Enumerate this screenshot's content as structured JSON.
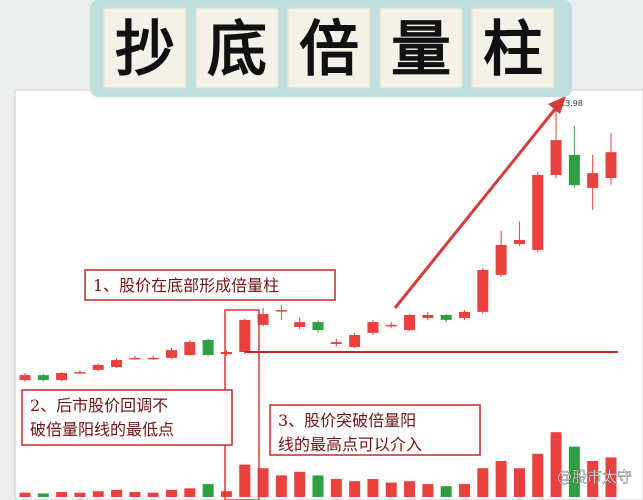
{
  "chart_data": {
    "type": "candlestick",
    "title": [
      "抄",
      "底",
      "倍",
      "量",
      "柱"
    ],
    "open": [
      5.16,
      5.32,
      5.16,
      5.4,
      5.49,
      5.58,
      5.87,
      5.87,
      5.88,
      5.97,
      6.46,
      6.0,
      6.07,
      6.95,
      7.42,
      6.88,
      7.04,
      6.33,
      6.23,
      6.69,
      6.94,
      6.78,
      7.17,
      7.27,
      7.17,
      7.37,
      8.57,
      9.57,
      9.38,
      11.81,
      12.46,
      11.39,
      11.71
    ],
    "high": [
      5.39,
      5.36,
      5.42,
      5.49,
      5.7,
      5.85,
      5.95,
      5.95,
      6.2,
      6.46,
      6.5,
      6.13,
      7.15,
      7.5,
      7.59,
      7.2,
      7.1,
      6.5,
      6.7,
      7.11,
      7.04,
      7.3,
      7.37,
      7.3,
      7.43,
      8.8,
      10.0,
      10.3,
      11.9,
      13.98,
      13.4,
      12.46,
      13.17
    ],
    "low": [
      5.1,
      5.12,
      5.12,
      5.36,
      5.45,
      5.55,
      5.82,
      5.82,
      5.85,
      5.95,
      5.92,
      5.95,
      6.0,
      6.9,
      7.11,
      6.8,
      6.7,
      6.25,
      6.2,
      6.62,
      6.85,
      6.75,
      7.11,
      7.04,
      7.11,
      7.3,
      8.5,
      9.5,
      9.3,
      11.7,
      11.4,
      10.67,
      11.5
    ],
    "close": [
      5.32,
      5.16,
      5.39,
      5.42,
      5.65,
      5.81,
      5.88,
      5.88,
      6.13,
      6.39,
      5.97,
      6.07,
      7.11,
      7.3,
      7.43,
      7.04,
      6.78,
      6.39,
      6.62,
      7.04,
      6.95,
      7.27,
      7.27,
      7.11,
      7.37,
      8.73,
      9.54,
      9.7,
      11.81,
      12.94,
      11.48,
      11.87,
      12.55
    ],
    "volume": [
      6,
      5,
      7,
      6,
      8,
      10,
      7,
      6,
      10,
      12,
      18,
      8,
      45,
      40,
      30,
      35,
      30,
      25,
      22,
      25,
      20,
      22,
      18,
      15,
      18,
      40,
      50,
      40,
      60,
      90,
      70,
      50,
      55
    ],
    "ylim": [
      5,
      14.5
    ],
    "volume_ylim": [
      0,
      100
    ],
    "up_color": "#e8413f",
    "down_color": "#2ea043",
    "reference_line": 6.07,
    "annotations": [
      [
        "1、股价在底部形成倍量柱"
      ],
      [
        "2、后市股价回调不",
        "破倍量阳线的最低点"
      ],
      [
        "3、股价突破倍量阳",
        "线的最高点可以介入"
      ]
    ],
    "watermark": "@股市太守"
  }
}
